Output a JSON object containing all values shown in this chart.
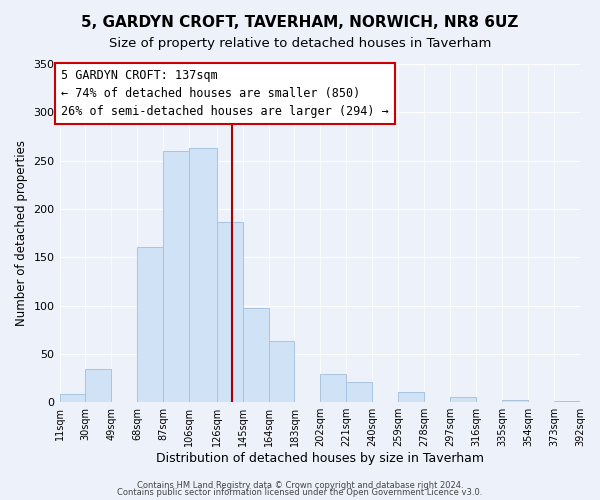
{
  "title": "5, GARDYN CROFT, TAVERHAM, NORWICH, NR8 6UZ",
  "subtitle": "Size of property relative to detached houses in Taverham",
  "xlabel": "Distribution of detached houses by size in Taverham",
  "ylabel": "Number of detached properties",
  "bar_color": "#d0e2f5",
  "bar_edge_color": "#a8c4e0",
  "bin_edges": [
    11,
    30,
    49,
    68,
    87,
    106,
    126,
    145,
    164,
    183,
    202,
    221,
    240,
    259,
    278,
    297,
    316,
    335,
    354,
    373,
    392
  ],
  "bin_labels": [
    "11sqm",
    "30sqm",
    "49sqm",
    "68sqm",
    "87sqm",
    "106sqm",
    "126sqm",
    "145sqm",
    "164sqm",
    "183sqm",
    "202sqm",
    "221sqm",
    "240sqm",
    "259sqm",
    "278sqm",
    "297sqm",
    "316sqm",
    "335sqm",
    "354sqm",
    "373sqm",
    "392sqm"
  ],
  "counts": [
    9,
    34,
    0,
    161,
    260,
    263,
    186,
    97,
    63,
    0,
    29,
    21,
    0,
    11,
    0,
    5,
    0,
    2,
    0,
    1
  ],
  "vline_x": 137,
  "vline_color": "#aa0000",
  "annotation_title": "5 GARDYN CROFT: 137sqm",
  "annotation_line1": "← 74% of detached houses are smaller (850)",
  "annotation_line2": "26% of semi-detached houses are larger (294) →",
  "annotation_box_color": "#ffffff",
  "annotation_box_edge": "#cc0000",
  "ylim": [
    0,
    350
  ],
  "yticks": [
    0,
    50,
    100,
    150,
    200,
    250,
    300,
    350
  ],
  "footer1": "Contains HM Land Registry data © Crown copyright and database right 2024.",
  "footer2": "Contains public sector information licensed under the Open Government Licence v3.0.",
  "background_color": "#edf2fa",
  "grid_color": "#ffffff",
  "title_fontsize": 11,
  "subtitle_fontsize": 9.5,
  "ylabel_fontsize": 8.5,
  "xlabel_fontsize": 9
}
